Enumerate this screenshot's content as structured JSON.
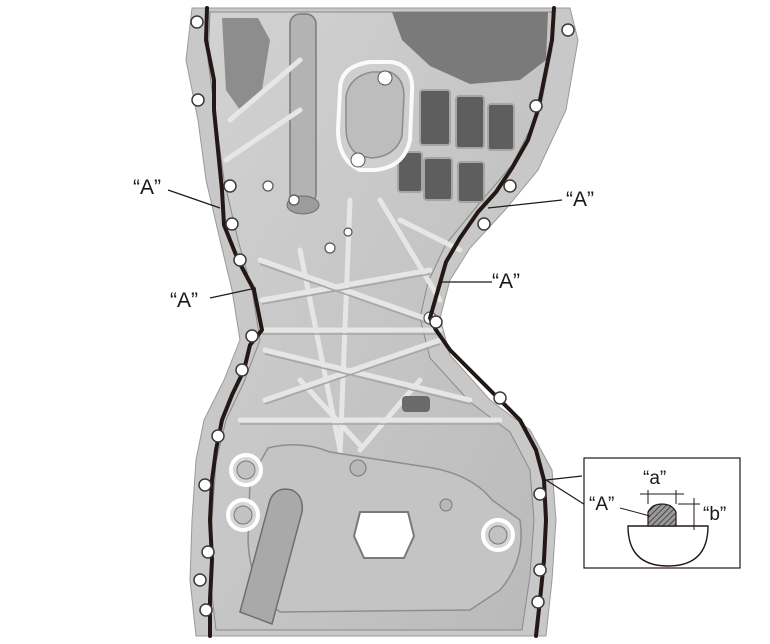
{
  "callouts": {
    "a_upper_left": "“A”",
    "a_mid_left": "“A”",
    "a_upper_right": "“A”",
    "a_mid_right": "“A”"
  },
  "detail": {
    "label_a_bead": "“A”",
    "label_width": "“a”",
    "label_height": "“b”"
  },
  "colors": {
    "gasket_bead": "#231815",
    "cover_fill": "#c9c9c9",
    "cover_rim": "#bdbdbd",
    "rib_fill": "#d8d8d8",
    "cavity_fill": "#6e6e6e",
    "bead_hatch": "#555555"
  }
}
